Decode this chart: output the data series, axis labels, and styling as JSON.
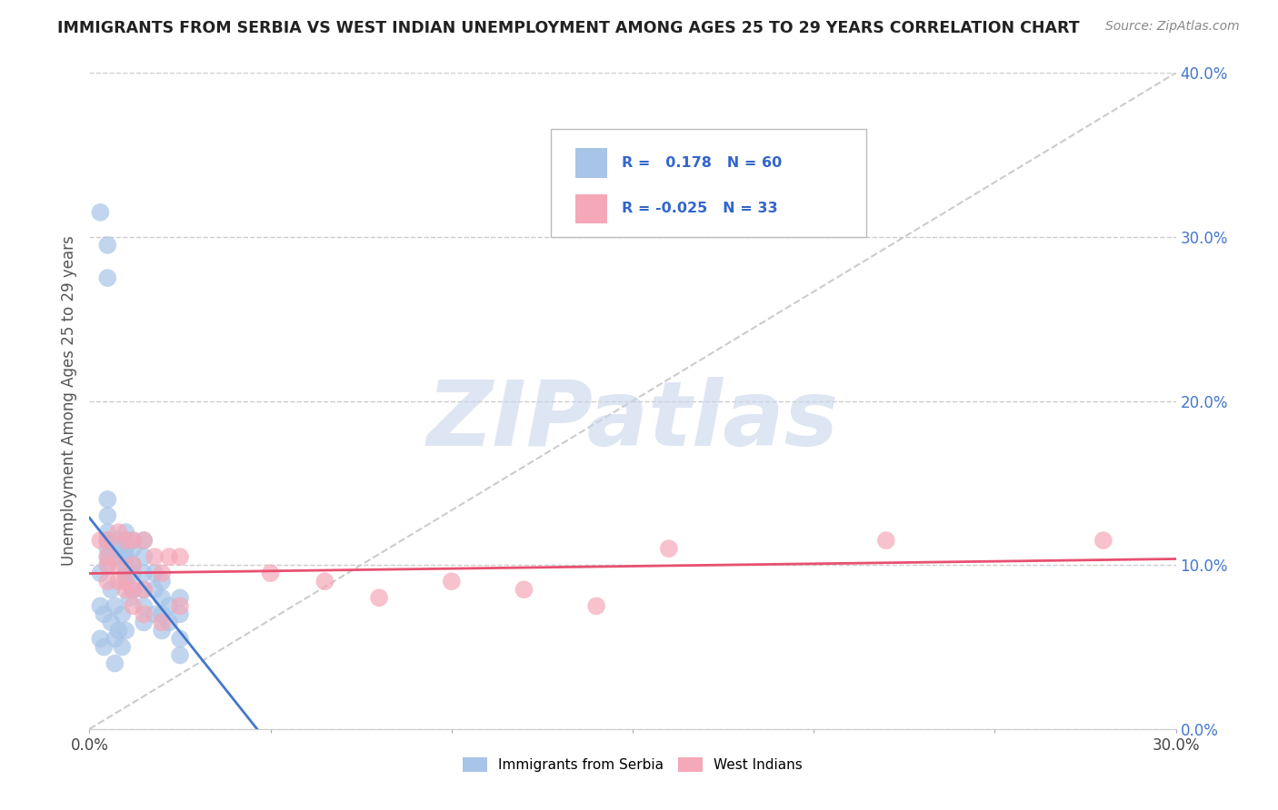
{
  "title": "IMMIGRANTS FROM SERBIA VS WEST INDIAN UNEMPLOYMENT AMONG AGES 25 TO 29 YEARS CORRELATION CHART",
  "source": "Source: ZipAtlas.com",
  "ylabel": "Unemployment Among Ages 25 to 29 years",
  "xlim": [
    0.0,
    0.3
  ],
  "ylim": [
    0.0,
    0.4
  ],
  "yticks": [
    0.0,
    0.1,
    0.2,
    0.3,
    0.4
  ],
  "ytick_labels": [
    "0.0%",
    "10.0%",
    "20.0%",
    "30.0%",
    "40.0%"
  ],
  "serbia_color": "#a8c4e8",
  "west_indian_color": "#f4a8b8",
  "serbia_R": 0.178,
  "serbia_N": 60,
  "west_indian_R": -0.025,
  "west_indian_N": 33,
  "legend_label_serbia": "Immigrants from Serbia",
  "legend_label_west": "West Indians",
  "serbia_trend_color": "#4477cc",
  "west_trend_color": "#e85070",
  "diagonal_color": "#cccccc",
  "watermark_color": "#c8d4ec",
  "serbia_points_x": [
    0.003,
    0.005,
    0.005,
    0.005,
    0.005,
    0.005,
    0.005,
    0.005,
    0.005,
    0.005,
    0.005,
    0.008,
    0.008,
    0.008,
    0.01,
    0.01,
    0.01,
    0.01,
    0.01,
    0.01,
    0.01,
    0.012,
    0.012,
    0.012,
    0.012,
    0.012,
    0.015,
    0.015,
    0.015,
    0.015,
    0.015,
    0.015,
    0.018,
    0.018,
    0.018,
    0.02,
    0.02,
    0.02,
    0.02,
    0.022,
    0.022,
    0.025,
    0.025,
    0.025,
    0.025,
    0.003,
    0.003,
    0.003,
    0.004,
    0.004,
    0.006,
    0.006,
    0.007,
    0.007,
    0.007,
    0.008,
    0.009,
    0.009,
    0.01,
    0.011
  ],
  "serbia_points_y": [
    0.315,
    0.295,
    0.275,
    0.14,
    0.13,
    0.12,
    0.115,
    0.115,
    0.11,
    0.105,
    0.1,
    0.115,
    0.11,
    0.105,
    0.12,
    0.115,
    0.11,
    0.105,
    0.1,
    0.095,
    0.09,
    0.115,
    0.11,
    0.1,
    0.095,
    0.085,
    0.115,
    0.105,
    0.095,
    0.085,
    0.075,
    0.065,
    0.095,
    0.085,
    0.07,
    0.09,
    0.08,
    0.07,
    0.06,
    0.075,
    0.065,
    0.08,
    0.07,
    0.055,
    0.045,
    0.095,
    0.075,
    0.055,
    0.07,
    0.05,
    0.085,
    0.065,
    0.075,
    0.055,
    0.04,
    0.06,
    0.07,
    0.05,
    0.06,
    0.08
  ],
  "west_points_x": [
    0.003,
    0.005,
    0.005,
    0.005,
    0.008,
    0.008,
    0.01,
    0.01,
    0.012,
    0.012,
    0.012,
    0.015,
    0.015,
    0.018,
    0.02,
    0.022,
    0.025,
    0.025,
    0.05,
    0.065,
    0.08,
    0.1,
    0.12,
    0.14,
    0.16,
    0.22,
    0.28,
    0.005,
    0.008,
    0.01,
    0.012,
    0.015,
    0.02
  ],
  "west_points_y": [
    0.115,
    0.115,
    0.1,
    0.09,
    0.12,
    0.1,
    0.115,
    0.09,
    0.115,
    0.1,
    0.085,
    0.115,
    0.085,
    0.105,
    0.095,
    0.105,
    0.105,
    0.075,
    0.095,
    0.09,
    0.08,
    0.09,
    0.085,
    0.075,
    0.11,
    0.115,
    0.115,
    0.105,
    0.09,
    0.085,
    0.075,
    0.07,
    0.065
  ]
}
